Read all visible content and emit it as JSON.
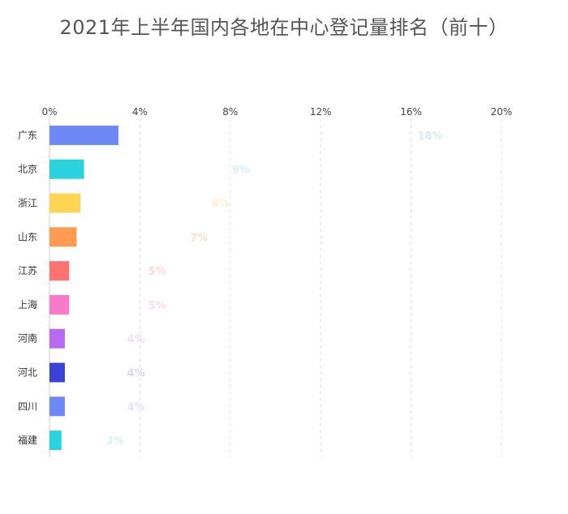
{
  "chart_data": {
    "type": "bar",
    "orientation": "horizontal",
    "title": "2021年上半年国内各地在中心登记量排名（前十）",
    "xlabel": "",
    "ylabel": "",
    "xlim": [
      0,
      20
    ],
    "ticks": [
      "0%",
      "4%",
      "8%",
      "12%",
      "16%",
      "20%"
    ],
    "tick_values": [
      0,
      4,
      8,
      12,
      16,
      20
    ],
    "grid": true,
    "categories": [
      "广东",
      "北京",
      "浙江",
      "山东",
      "江苏",
      "上海",
      "河南",
      "河北",
      "四川",
      "福建"
    ],
    "values": [
      3.05,
      1.53,
      1.37,
      1.2,
      0.87,
      0.87,
      0.68,
      0.68,
      0.68,
      0.53
    ],
    "data_labels": [
      "18%",
      "9%",
      "8%",
      "7%",
      "5%",
      "5%",
      "4%",
      "4%",
      "4%",
      "3%"
    ],
    "label_values": [
      18,
      9,
      8,
      7,
      5,
      5,
      4,
      4,
      4,
      3
    ],
    "bar_colors": [
      "#6e89f5",
      "#2bd3de",
      "#ffd454",
      "#ff9a52",
      "#ff7272",
      "#f87ac8",
      "#b86af2",
      "#3b40d6",
      "#6e89f5",
      "#2bd3de"
    ],
    "label_colors": [
      "#dde6fb",
      "#d2f3f6",
      "#fff1cc",
      "#ffe0c7",
      "#ffd8d8",
      "#fbdcef",
      "#ece0fb",
      "#d8d9f5",
      "#dde6fb",
      "#d2f3f6"
    ]
  }
}
